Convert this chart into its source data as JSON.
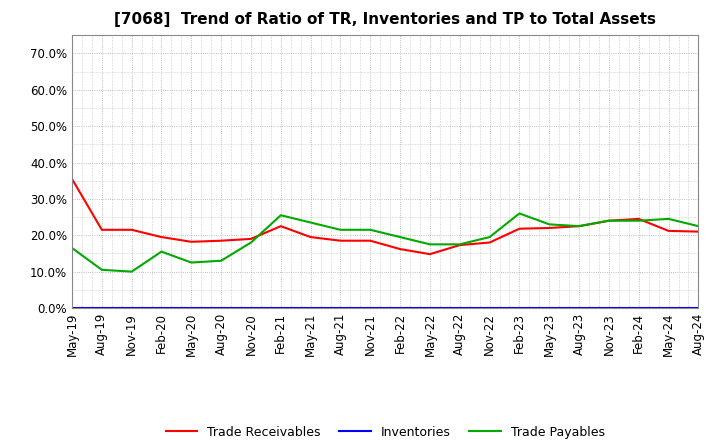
{
  "title": "[7068]  Trend of Ratio of TR, Inventories and TP to Total Assets",
  "x_labels": [
    "May-19",
    "Aug-19",
    "Nov-19",
    "Feb-20",
    "May-20",
    "Aug-20",
    "Nov-20",
    "Feb-21",
    "May-21",
    "Aug-21",
    "Nov-21",
    "Feb-22",
    "May-22",
    "Aug-22",
    "Nov-22",
    "Feb-23",
    "May-23",
    "Aug-23",
    "Nov-23",
    "Feb-24",
    "May-24",
    "Aug-24"
  ],
  "trade_receivables": [
    0.355,
    0.215,
    0.215,
    0.195,
    0.182,
    0.185,
    0.19,
    0.225,
    0.195,
    0.185,
    0.185,
    0.162,
    0.148,
    0.173,
    0.18,
    0.218,
    0.22,
    0.225,
    0.24,
    0.245,
    0.212,
    0.21
  ],
  "inventories": [
    0.0,
    0.0,
    0.0,
    0.0,
    0.0,
    0.0,
    0.0,
    0.0,
    0.0,
    0.0,
    0.0,
    0.0,
    0.0,
    0.0,
    0.0,
    0.0,
    0.0,
    0.0,
    0.0,
    0.0,
    0.0,
    0.0
  ],
  "trade_payables": [
    0.165,
    0.105,
    0.1,
    0.155,
    0.125,
    0.13,
    0.18,
    0.255,
    0.235,
    0.215,
    0.215,
    0.195,
    0.175,
    0.175,
    0.195,
    0.26,
    0.23,
    0.225,
    0.24,
    0.24,
    0.245,
    0.225
  ],
  "colors": {
    "trade_receivables": "#ff0000",
    "inventories": "#0000ff",
    "trade_payables": "#00aa00"
  },
  "ylim": [
    0.0,
    0.75
  ],
  "yticks": [
    0.0,
    0.1,
    0.2,
    0.3,
    0.4,
    0.5,
    0.6,
    0.7
  ],
  "background_color": "#ffffff",
  "plot_bg_color": "#ffffff",
  "grid_color": "#aaaaaa",
  "legend_labels": [
    "Trade Receivables",
    "Inventories",
    "Trade Payables"
  ],
  "title_fontsize": 11,
  "tick_fontsize": 8.5,
  "legend_fontsize": 9
}
